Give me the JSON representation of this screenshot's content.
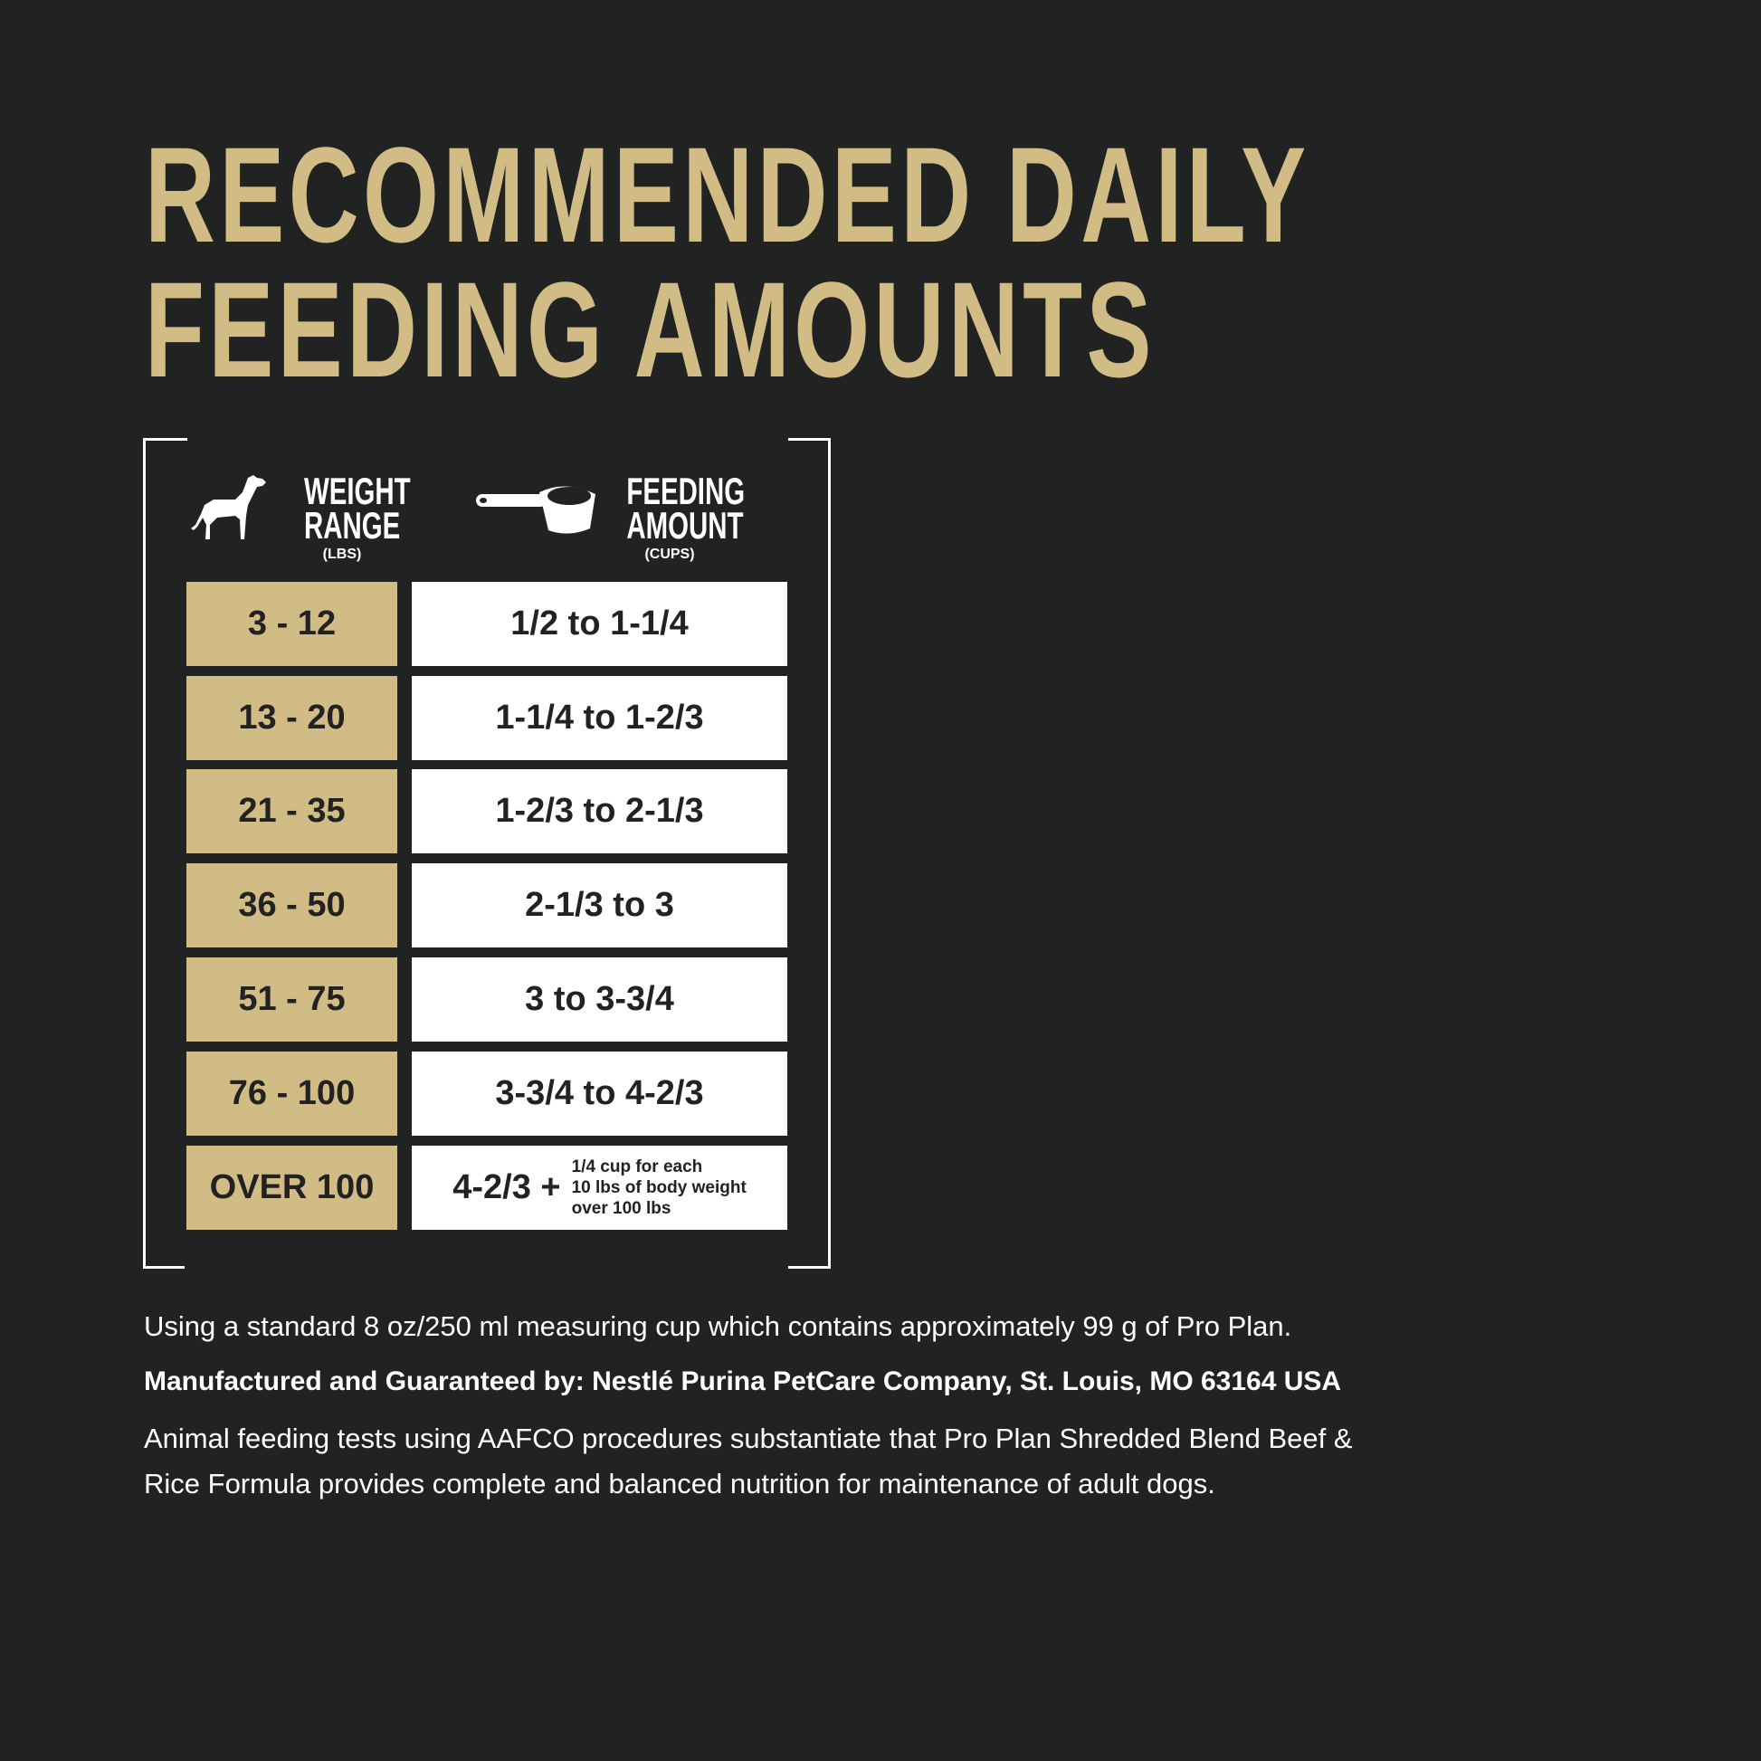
{
  "title": {
    "line1": "RECOMMENDED DAILY",
    "line2": "FEEDING AMOUNTS"
  },
  "colors": {
    "background": "#212322",
    "gold": "#d1bc85",
    "white": "#ffffff",
    "text_dark": "#222222"
  },
  "table": {
    "weight_header": {
      "line1": "WEIGHT",
      "line2": "RANGE",
      "unit": "(LBS)",
      "icon": "dog-icon"
    },
    "amount_header": {
      "line1": "FEEDING",
      "line2": "AMOUNT",
      "unit": "(CUPS)",
      "icon": "measuring-cup-icon"
    },
    "rows": [
      {
        "weight": "3 - 12",
        "amount": "1/2 to 1-1/4"
      },
      {
        "weight": "13 - 20",
        "amount": "1-1/4 to 1-2/3"
      },
      {
        "weight": "21 - 35",
        "amount": "1-2/3 to 2-1/3"
      },
      {
        "weight": "36 - 50",
        "amount": "2-1/3 to 3"
      },
      {
        "weight": "51 - 75",
        "amount": "3 to 3-3/4"
      },
      {
        "weight": "76 - 100",
        "amount": "3-3/4 to 4-2/3"
      },
      {
        "weight": "OVER 100",
        "amount": "4-2/3 +",
        "note": [
          "1/4 cup for each",
          "10 lbs of body weight",
          "over 100 lbs"
        ]
      }
    ]
  },
  "footer": {
    "cup_note": "Using a standard 8 oz/250 ml measuring cup which contains approximately 99 g of Pro Plan.",
    "manufacturer": "Manufactured and Guaranteed by: Nestlé Purina PetCare Company, St. Louis, MO 63164 USA",
    "aafco_line1": "Animal feeding tests using AAFCO procedures substantiate that Pro Plan Shredded Blend Beef &",
    "aafco_line2": "Rice Formula provides complete and balanced nutrition for maintenance of adult dogs."
  }
}
